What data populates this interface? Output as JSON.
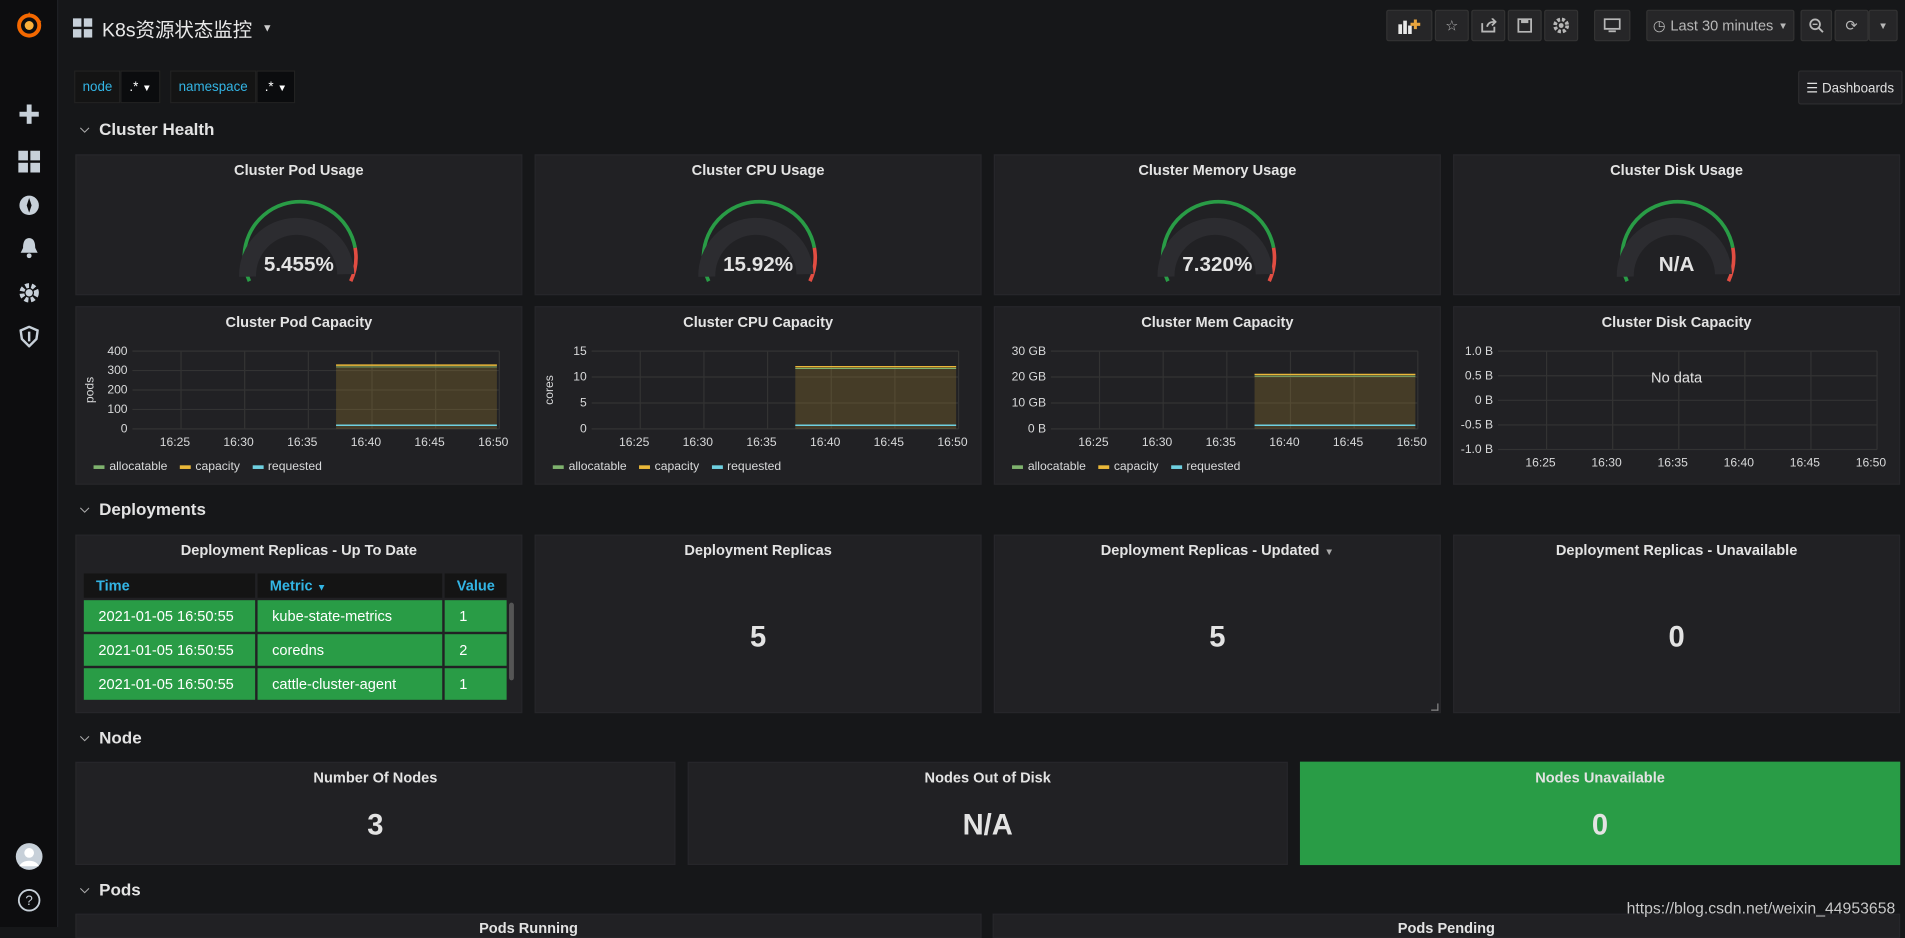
{
  "dashboard": {
    "title": "K8s资源状态监控"
  },
  "toolbar": {
    "time_range": "Last 30 minutes"
  },
  "variables": [
    {
      "label": "node",
      "value": ".*"
    },
    {
      "label": "namespace",
      "value": ".*"
    }
  ],
  "dashboards_button": "Dashboards",
  "rows": {
    "cluster_health": "Cluster Health",
    "deployments": "Deployments",
    "node": "Node",
    "pods": "Pods"
  },
  "gauges": [
    {
      "title": "Cluster Pod Usage",
      "value": "5.455%",
      "fraction": 0.05455
    },
    {
      "title": "Cluster CPU Usage",
      "value": "15.92%",
      "fraction": 0.1592
    },
    {
      "title": "Cluster Memory Usage",
      "value": "7.320%",
      "fraction": 0.0732
    },
    {
      "title": "Cluster Disk Usage",
      "value": "N/A",
      "fraction": 0
    }
  ],
  "capacity_charts": [
    {
      "title": "Cluster Pod Capacity",
      "ylabel": "pods",
      "yticks": [
        "400",
        "300",
        "200",
        "100",
        "0"
      ],
      "xticks": [
        "16:25",
        "16:30",
        "16:35",
        "16:40",
        "16:45",
        "16:50"
      ],
      "legend": [
        "allocatable",
        "capacity",
        "requested"
      ]
    },
    {
      "title": "Cluster CPU Capacity",
      "ylabel": "cores",
      "yticks": [
        "15",
        "10",
        "5",
        "0"
      ],
      "xticks": [
        "16:25",
        "16:30",
        "16:35",
        "16:40",
        "16:45",
        "16:50"
      ],
      "legend": [
        "allocatable",
        "capacity",
        "requested"
      ]
    },
    {
      "title": "Cluster Mem Capacity",
      "ylabel": "",
      "yticks": [
        "30 GB",
        "20 GB",
        "10 GB",
        "0 B"
      ],
      "xticks": [
        "16:25",
        "16:30",
        "16:35",
        "16:40",
        "16:45",
        "16:50"
      ],
      "legend": [
        "allocatable",
        "capacity",
        "requested"
      ]
    },
    {
      "title": "Cluster Disk Capacity",
      "ylabel": "",
      "yticks": [
        "1.0 B",
        "0.5 B",
        "0 B",
        "-0.5 B",
        "-1.0 B"
      ],
      "xticks": [
        "16:25",
        "16:30",
        "16:35",
        "16:40",
        "16:45",
        "16:50"
      ],
      "no_data": "No data"
    }
  ],
  "deployments": {
    "table_title": "Deployment Replicas - Up To Date",
    "columns": [
      "Time",
      "Metric",
      "Value"
    ],
    "rows": [
      [
        "2021-01-05 16:50:55",
        "kube-state-metrics",
        "1"
      ],
      [
        "2021-01-05 16:50:55",
        "coredns",
        "2"
      ],
      [
        "2021-01-05 16:50:55",
        "cattle-cluster-agent",
        "1"
      ]
    ],
    "stats": [
      {
        "title": "Deployment Replicas",
        "value": "5"
      },
      {
        "title": "Deployment Replicas - Updated",
        "value": "5"
      },
      {
        "title": "Deployment Replicas - Unavailable",
        "value": "0"
      }
    ]
  },
  "nodes": [
    {
      "title": "Number Of Nodes",
      "value": "3"
    },
    {
      "title": "Nodes Out of Disk",
      "value": "N/A"
    },
    {
      "title": "Nodes Unavailable",
      "value": "0"
    }
  ],
  "pods": [
    "Pods Running",
    "Pods Pending"
  ],
  "watermark": "https://blog.csdn.net/weixin_44953658",
  "colors": {
    "green": "#299c46",
    "yellow": "#eab839",
    "blue": "#6ed0e0",
    "allocatable": "#7eb26d"
  }
}
